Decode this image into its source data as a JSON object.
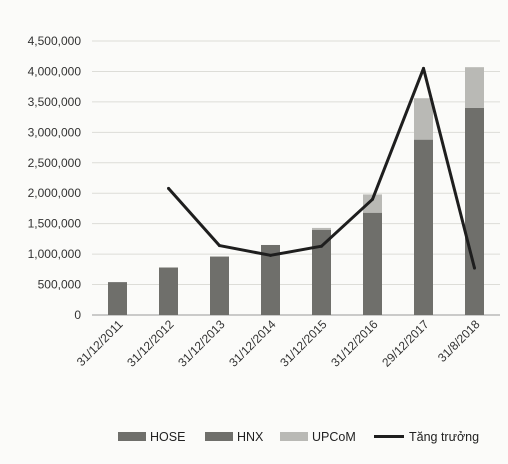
{
  "chart_data": {
    "type": "bar",
    "stacked": true,
    "title": "",
    "xlabel": "",
    "ylabel": "",
    "categories": [
      "31/12/2011",
      "31/12/2012",
      "31/12/2013",
      "31/12/2014",
      "31/12/2015",
      "31/12/2016",
      "29/12/2017",
      "31/8/2018"
    ],
    "ylim": [
      0,
      4500000
    ],
    "yticks": [
      0,
      500000,
      1000000,
      1500000,
      2000000,
      2500000,
      3000000,
      3500000,
      4000000,
      4500000
    ],
    "ytick_labels": [
      "0",
      "500,000",
      "1,000,000",
      "1,500,000",
      "2,000,000",
      "2,500,000",
      "3,000,000",
      "3,500,000",
      "4,000,000",
      "4,500,000"
    ],
    "series": [
      {
        "name": "HOSE",
        "type": "bar",
        "color": "#6f6f6b",
        "values": [
          540000,
          780000,
          960000,
          1150000,
          1400000,
          1680000,
          2880000,
          3400000
        ]
      },
      {
        "name": "HNX",
        "type": "bar",
        "color": "#6f6f6b",
        "values": [
          0,
          0,
          0,
          0,
          0,
          0,
          0,
          0
        ]
      },
      {
        "name": "UPCoM",
        "type": "bar",
        "color": "#b9b9b5",
        "values": [
          0,
          0,
          0,
          0,
          30000,
          300000,
          680000,
          670000
        ]
      },
      {
        "name": "Tăng trưởng",
        "type": "line",
        "color": "#1e1e1e",
        "values": [
          null,
          2080000,
          1140000,
          980000,
          1130000,
          1900000,
          4050000,
          770000
        ]
      }
    ],
    "grid": true,
    "legend_position": "bottom"
  }
}
